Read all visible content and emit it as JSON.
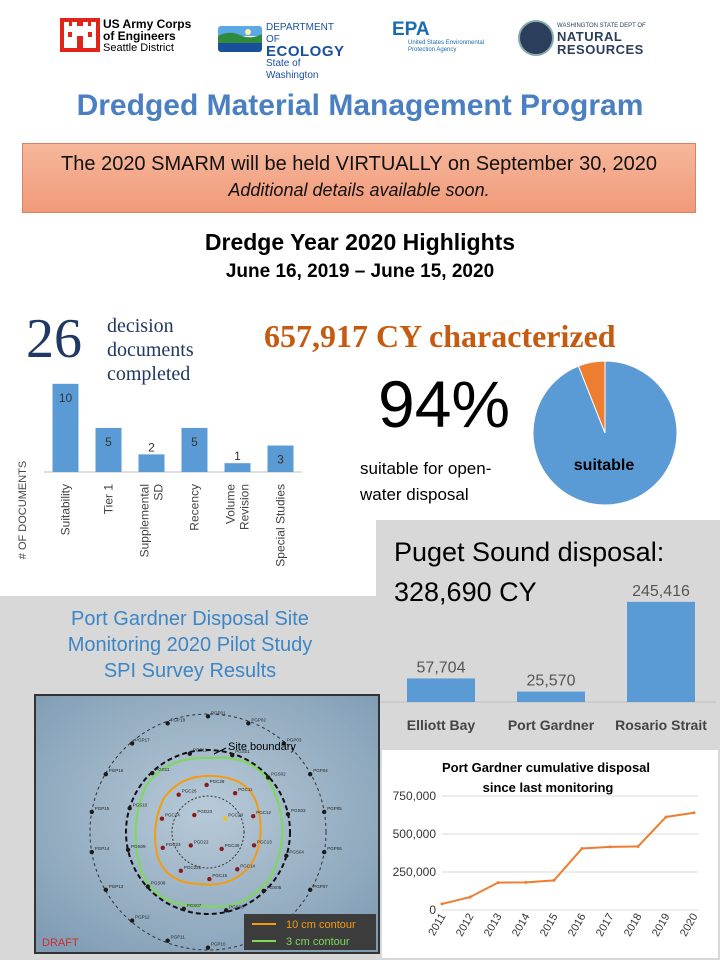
{
  "logos": {
    "usace": {
      "line1": "US Army Corps",
      "line2": "of Engineers",
      "line3": "Seattle District",
      "color": "#e2231a"
    },
    "ecology": {
      "line1": "DEPARTMENT OF",
      "line2": "ECOLOGY",
      "line3": "State of Washington"
    },
    "epa": {
      "mark": "EPA",
      "sub": "United States Environmental Protection Agency"
    },
    "dnr": {
      "line1": "WASHINGTON STATE DEPT OF",
      "line2": "NATURAL",
      "line3": "RESOURCES"
    }
  },
  "program_title": "Dredged Material Management Program",
  "banner": {
    "line1": "The 2020 SMARM will be held VIRTUALLY on September 30, 2020",
    "line2": "Additional details available soon."
  },
  "highlights": {
    "title": "Dredge Year 2020 Highlights",
    "dates": "June 16, 2019 – June 15, 2020"
  },
  "decision": {
    "count": "26",
    "text_line1": "decision",
    "text_line2": "documents",
    "text_line3": "completed"
  },
  "characterized": "657,917 CY characterized",
  "suitability": {
    "percent": "94%",
    "text_line1": "suitable for open-",
    "text_line2": "water disposal",
    "pie_label": "suitable"
  },
  "puget": {
    "title": "Puget Sound disposal:",
    "value": "328,690 CY"
  },
  "port_gardner": {
    "title_line1": "Port Gardner Disposal Site",
    "title_line2": "Monitoring 2020 Pilot Study",
    "title_line3": "SPI Survey Results"
  },
  "map": {
    "site_boundary_label": "Site boundary",
    "draft_label": "DRAFT",
    "legend": [
      {
        "label": "10 cm contour",
        "color": "#f39c12"
      },
      {
        "label": "3 cm contour",
        "color": "#7ed957"
      }
    ],
    "station_labels": [
      "PGP01",
      "PGP02",
      "PGP03",
      "PGP04",
      "PGP05",
      "PGP06",
      "PGP07",
      "PGP08",
      "PGP09",
      "PGP10",
      "PGP11",
      "PGP12",
      "PGP13",
      "PGP14",
      "PGP15",
      "PGP16",
      "PGP17",
      "PGP18",
      "PGS01",
      "PGS02",
      "PGS03",
      "PGS04",
      "PGS05",
      "PGS06",
      "PGS07",
      "PGS08",
      "PGS09",
      "PGS10",
      "PGS11",
      "PGS12",
      "PGC11",
      "PGC12",
      "PGC13",
      "PGC14",
      "PGC15",
      "PGC221",
      "PGC23",
      "PGC24",
      "PGC26",
      "PGC28",
      "PGC29",
      "PGC30",
      "PGD22",
      "PGD23"
    ]
  },
  "colors": {
    "title_blue": "#4a7fc1",
    "bar_blue": "#5b9bd5",
    "orange": "#ed7d31",
    "dark_navy": "#1f3864",
    "brown_orange": "#c55a11",
    "panel_grey": "#d8d8d8"
  },
  "chart_data": [
    {
      "type": "bar",
      "title": "",
      "xlabel": "",
      "ylabel": "# OF DOCUMENTS",
      "categories": [
        "Suitability",
        "Tier 1",
        "Supplemental SD",
        "Recency",
        "Volume Revision",
        "Special Studies"
      ],
      "category_lines": [
        [
          "Suitability"
        ],
        [
          "Tier 1"
        ],
        [
          "Supplemental",
          "SD"
        ],
        [
          "Recency"
        ],
        [
          "Volume",
          "Revision"
        ],
        [
          "Special Studies"
        ]
      ],
      "values": [
        10,
        5,
        2,
        5,
        1,
        3
      ],
      "value_labels": [
        "10",
        "5",
        "2",
        "5",
        "1",
        "3"
      ],
      "ylim": [
        0,
        11
      ],
      "grid": false
    },
    {
      "type": "pie",
      "title": "",
      "labels": [
        "suitable",
        ""
      ],
      "values": [
        94,
        6
      ],
      "colors": [
        "#5b9bd5",
        "#ed7d31"
      ]
    },
    {
      "type": "bar",
      "title": "",
      "xlabel": "",
      "ylabel": "",
      "categories": [
        "Elliott Bay",
        "Port Gardner",
        "Rosario Strait"
      ],
      "values": [
        57704,
        25570,
        245416
      ],
      "value_labels": [
        "57,704",
        "25,570",
        "245,416"
      ],
      "ylim": [
        0,
        250000
      ],
      "grid": false
    },
    {
      "type": "line",
      "title_line1": "Port Gardner cumulative disposal",
      "title_line2": "since last monitoring",
      "xlabel": "",
      "ylabel": "",
      "x": [
        "2011",
        "2012",
        "2013",
        "2014",
        "2015",
        "2016",
        "2017",
        "2018",
        "2019",
        "2020"
      ],
      "y": [
        40000,
        85000,
        180000,
        182000,
        195000,
        405000,
        415000,
        418000,
        612000,
        640000
      ],
      "y_ticks": [
        0,
        250000,
        500000,
        750000
      ],
      "y_tick_labels": [
        "0",
        "250,000",
        "500,000",
        "750,000"
      ],
      "ylim": [
        0,
        750000
      ],
      "grid": true,
      "color": "#ed7d31"
    }
  ]
}
